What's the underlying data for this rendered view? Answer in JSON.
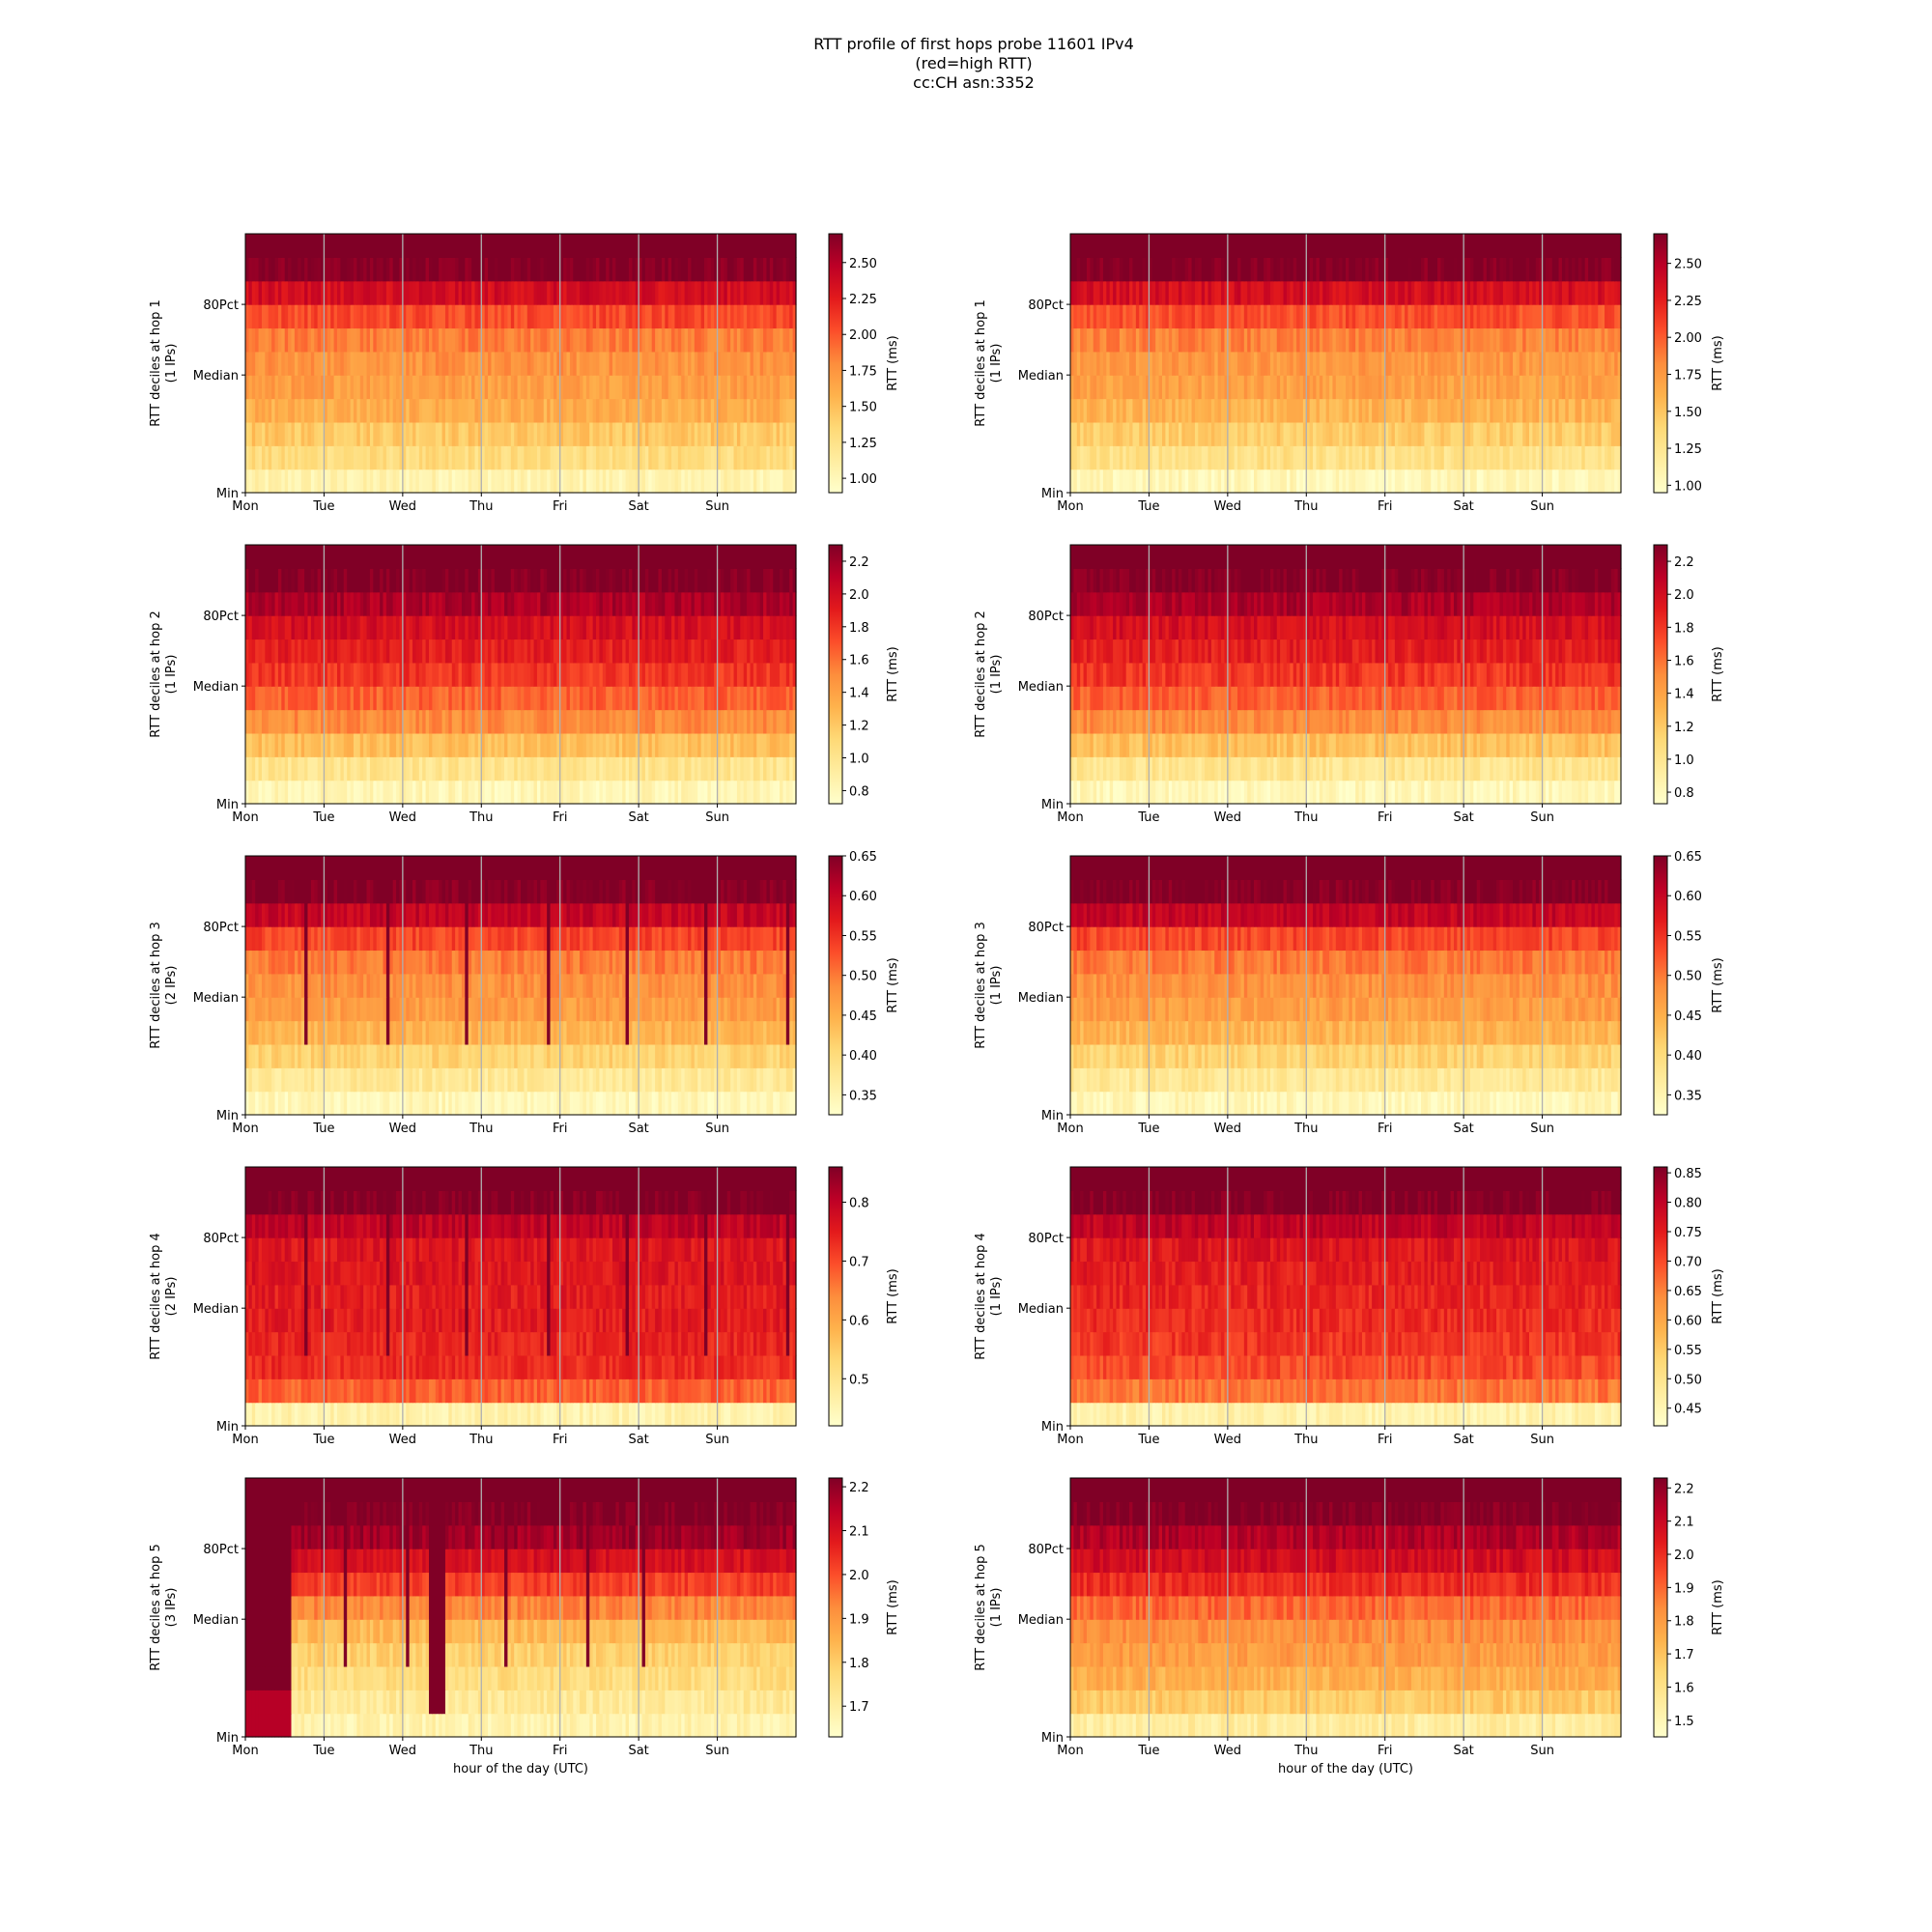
{
  "title_lines": [
    "RTT profile of first hops probe 11601 IPv4",
    "(red=high RTT)",
    "cc:CH asn:3352"
  ],
  "chart_data": [
    {
      "type": "heatmap",
      "hop": 1,
      "ylabel_line1": "RTT deciles at hop 1",
      "ylabel_line2": "(1 IPs)",
      "xticks": [
        "Mon",
        "Tue",
        "Wed",
        "Thu",
        "Fri",
        "Sat",
        "Sun"
      ],
      "yticks": [
        "Min",
        "Median",
        "80Pct"
      ],
      "xlabel": "",
      "colorbar_label": "RTT (ms)",
      "colorbar_ticks": [
        "1.00",
        "1.25",
        "1.50",
        "1.75",
        "2.00",
        "2.25",
        "2.50"
      ],
      "colorbar_range": [
        0.9,
        2.7
      ],
      "decile_values": [
        1.05,
        1.3,
        1.45,
        1.6,
        1.7,
        1.75,
        1.85,
        2.05,
        2.35,
        2.7
      ],
      "spikes": []
    },
    {
      "type": "heatmap",
      "hop": 1,
      "ylabel_line1": "RTT deciles at hop 1",
      "ylabel_line2": "(1 IPs)",
      "xticks": [
        "Mon",
        "Tue",
        "Wed",
        "Thu",
        "Fri",
        "Sat",
        "Sun"
      ],
      "yticks": [
        "Min",
        "Median",
        "80Pct"
      ],
      "xlabel": "",
      "colorbar_label": "RTT (ms)",
      "colorbar_ticks": [
        "1.00",
        "1.25",
        "1.50",
        "1.75",
        "2.00",
        "2.25",
        "2.50"
      ],
      "colorbar_range": [
        0.95,
        2.7
      ],
      "decile_values": [
        1.05,
        1.3,
        1.45,
        1.6,
        1.7,
        1.75,
        1.85,
        2.05,
        2.35,
        2.7
      ],
      "spikes": []
    },
    {
      "type": "heatmap",
      "hop": 2,
      "ylabel_line1": "RTT deciles at hop 2",
      "ylabel_line2": "(1 IPs)",
      "xticks": [
        "Mon",
        "Tue",
        "Wed",
        "Thu",
        "Fri",
        "Sat",
        "Sun"
      ],
      "yticks": [
        "Min",
        "Median",
        "80Pct"
      ],
      "xlabel": "",
      "colorbar_label": "RTT (ms)",
      "colorbar_ticks": [
        "0.8",
        "1.0",
        "1.2",
        "1.4",
        "1.6",
        "1.8",
        "2.0",
        "2.2"
      ],
      "colorbar_range": [
        0.72,
        2.3
      ],
      "decile_values": [
        0.82,
        1.0,
        1.25,
        1.5,
        1.65,
        1.8,
        1.9,
        1.98,
        2.15,
        2.3
      ],
      "spikes": []
    },
    {
      "type": "heatmap",
      "hop": 2,
      "ylabel_line1": "RTT deciles at hop 2",
      "ylabel_line2": "(1 IPs)",
      "xticks": [
        "Mon",
        "Tue",
        "Wed",
        "Thu",
        "Fri",
        "Sat",
        "Sun"
      ],
      "yticks": [
        "Min",
        "Median",
        "80Pct"
      ],
      "xlabel": "",
      "colorbar_label": "RTT (ms)",
      "colorbar_ticks": [
        "0.8",
        "1.0",
        "1.2",
        "1.4",
        "1.6",
        "1.8",
        "2.0",
        "2.2"
      ],
      "colorbar_range": [
        0.73,
        2.3
      ],
      "decile_values": [
        0.82,
        1.0,
        1.25,
        1.5,
        1.65,
        1.8,
        1.9,
        1.98,
        2.15,
        2.3
      ],
      "spikes": []
    },
    {
      "type": "heatmap",
      "hop": 3,
      "ylabel_line1": "RTT deciles at hop 3",
      "ylabel_line2": "(2 IPs)",
      "xticks": [
        "Mon",
        "Tue",
        "Wed",
        "Thu",
        "Fri",
        "Sat",
        "Sun"
      ],
      "yticks": [
        "Min",
        "Median",
        "80Pct"
      ],
      "xlabel": "",
      "colorbar_label": "RTT (ms)",
      "colorbar_ticks": [
        "0.35",
        "0.40",
        "0.45",
        "0.50",
        "0.55",
        "0.60",
        "0.65"
      ],
      "colorbar_range": [
        0.325,
        0.65
      ],
      "decile_values": [
        0.345,
        0.375,
        0.41,
        0.445,
        0.47,
        0.48,
        0.5,
        0.535,
        0.6,
        0.65
      ],
      "spikes": [
        0.11,
        0.255,
        0.4,
        0.545,
        0.69,
        0.835,
        0.98
      ]
    },
    {
      "type": "heatmap",
      "hop": 3,
      "ylabel_line1": "RTT deciles at hop 3",
      "ylabel_line2": "(1 IPs)",
      "xticks": [
        "Mon",
        "Tue",
        "Wed",
        "Thu",
        "Fri",
        "Sat",
        "Sun"
      ],
      "yticks": [
        "Min",
        "Median",
        "80Pct"
      ],
      "xlabel": "",
      "colorbar_label": "RTT (ms)",
      "colorbar_ticks": [
        "0.35",
        "0.40",
        "0.45",
        "0.50",
        "0.55",
        "0.60",
        "0.65"
      ],
      "colorbar_range": [
        0.325,
        0.65
      ],
      "decile_values": [
        0.345,
        0.375,
        0.41,
        0.445,
        0.47,
        0.48,
        0.5,
        0.535,
        0.6,
        0.65
      ],
      "spikes": []
    },
    {
      "type": "heatmap",
      "hop": 4,
      "ylabel_line1": "RTT deciles at hop 4",
      "ylabel_line2": "(2 IPs)",
      "xticks": [
        "Mon",
        "Tue",
        "Wed",
        "Thu",
        "Fri",
        "Sat",
        "Sun"
      ],
      "yticks": [
        "Min",
        "Median",
        "80Pct"
      ],
      "xlabel": "",
      "colorbar_label": "RTT (ms)",
      "colorbar_ticks": [
        "0.5",
        "0.6",
        "0.7",
        "0.8"
      ],
      "colorbar_range": [
        0.42,
        0.86
      ],
      "decile_values": [
        0.46,
        0.68,
        0.73,
        0.74,
        0.75,
        0.75,
        0.76,
        0.76,
        0.8,
        0.86
      ],
      "spikes": [
        0.11,
        0.255,
        0.4,
        0.545,
        0.69,
        0.835,
        0.98
      ]
    },
    {
      "type": "heatmap",
      "hop": 4,
      "ylabel_line1": "RTT deciles at hop 4",
      "ylabel_line2": "(1 IPs)",
      "xticks": [
        "Mon",
        "Tue",
        "Wed",
        "Thu",
        "Fri",
        "Sat",
        "Sun"
      ],
      "yticks": [
        "Min",
        "Median",
        "80Pct"
      ],
      "xlabel": "",
      "colorbar_label": "RTT (ms)",
      "colorbar_ticks": [
        "0.45",
        "0.50",
        "0.55",
        "0.60",
        "0.65",
        "0.70",
        "0.75",
        "0.80",
        "0.85"
      ],
      "colorbar_range": [
        0.42,
        0.86
      ],
      "decile_values": [
        0.46,
        0.66,
        0.7,
        0.72,
        0.73,
        0.74,
        0.75,
        0.76,
        0.8,
        0.86
      ],
      "spikes": []
    },
    {
      "type": "heatmap",
      "hop": 5,
      "ylabel_line1": "RTT deciles at hop 5",
      "ylabel_line2": "(3 IPs)",
      "xticks": [
        "Mon",
        "Tue",
        "Wed",
        "Thu",
        "Fri",
        "Sat",
        "Sun"
      ],
      "yticks": [
        "Min",
        "Median",
        "80Pct"
      ],
      "xlabel": "hour of the day (UTC)",
      "colorbar_label": "RTT (ms)",
      "colorbar_ticks": [
        "1.7",
        "1.8",
        "1.9",
        "2.0",
        "2.1",
        "2.2"
      ],
      "colorbar_range": [
        1.63,
        2.22
      ],
      "decile_values": [
        1.68,
        1.72,
        1.76,
        1.79,
        1.84,
        1.93,
        2.02,
        2.1,
        2.18,
        2.22
      ],
      "spikes": [
        0.18,
        0.29,
        0.35,
        0.47,
        0.62,
        0.72
      ]
    },
    {
      "type": "heatmap",
      "hop": 5,
      "ylabel_line1": "RTT deciles at hop 5",
      "ylabel_line2": "(1 IPs)",
      "xticks": [
        "Mon",
        "Tue",
        "Wed",
        "Thu",
        "Fri",
        "Sat",
        "Sun"
      ],
      "yticks": [
        "Min",
        "Median",
        "80Pct"
      ],
      "xlabel": "hour of the day (UTC)",
      "colorbar_label": "RTT (ms)",
      "colorbar_ticks": [
        "1.5",
        "1.6",
        "1.7",
        "1.8",
        "1.9",
        "2.0",
        "2.1",
        "2.2"
      ],
      "colorbar_range": [
        1.45,
        2.23
      ],
      "decile_values": [
        1.55,
        1.68,
        1.75,
        1.8,
        1.83,
        1.9,
        2.0,
        2.08,
        2.15,
        2.23
      ],
      "spikes": []
    }
  ]
}
